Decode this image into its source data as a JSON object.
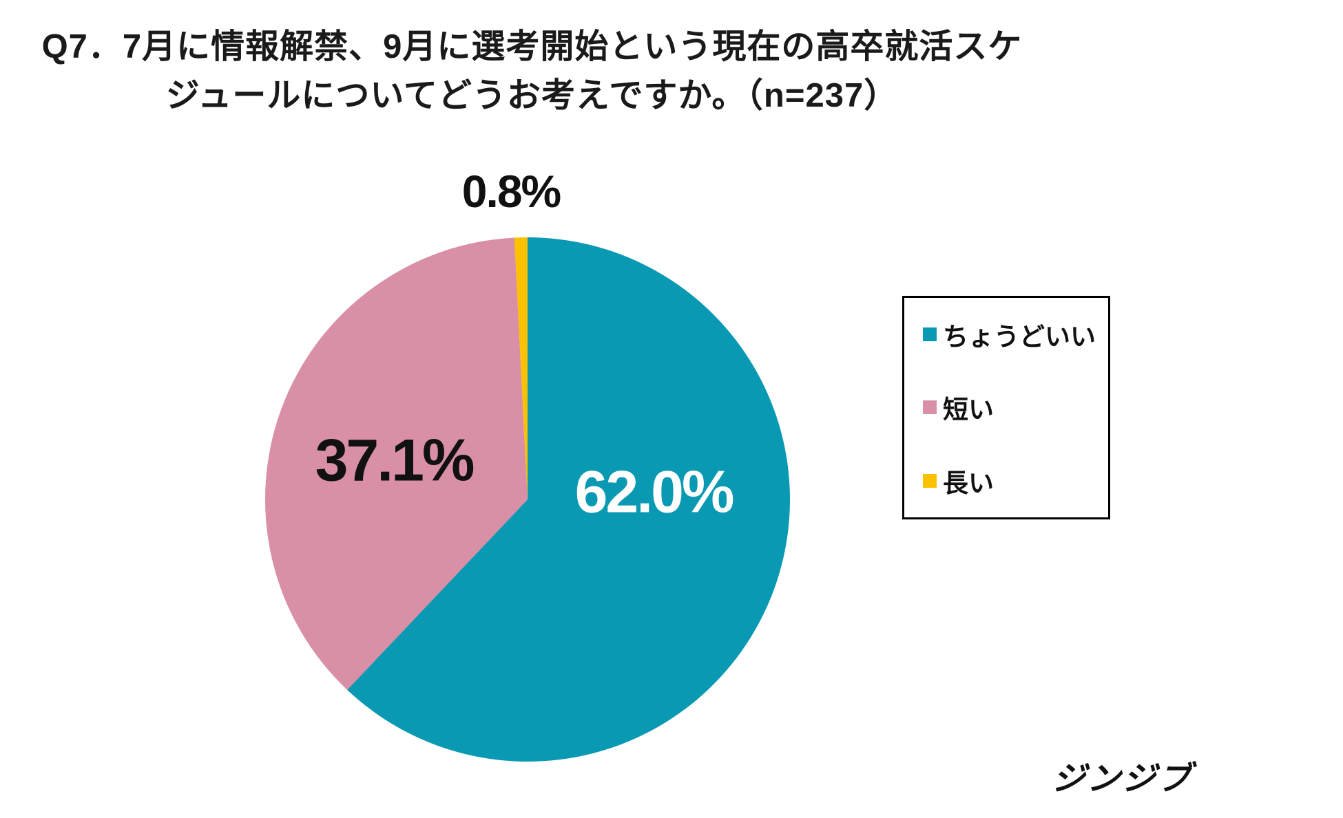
{
  "title": {
    "line1": "Q7．7月に情報解禁、9月に選考開始という現在の高卒就活スケ",
    "line2": "ジュールについてどうお考えですか。（n=237）"
  },
  "chart_data": {
    "type": "pie",
    "title": "Q7．7月に情報解禁、9月に選考開始という現在の高卒就活スケジュールについてどうお考えですか。（n=237）",
    "sample_size": 237,
    "categories": [
      "ちょうどいい",
      "短い",
      "長い"
    ],
    "values": [
      62.0,
      37.1,
      0.8
    ],
    "colors": [
      "#0999B3",
      "#D98FA6",
      "#FCC101"
    ],
    "data_labels": [
      "62.0%",
      "37.1%",
      "0.8%"
    ],
    "data_label_colors": [
      "#ffffff",
      "#111111",
      "#111111"
    ],
    "start_angle_deg": 0,
    "direction": "clockwise",
    "legend_position": "right",
    "legend_border": "#000000"
  },
  "logo": {
    "text": "ジンジブ"
  }
}
